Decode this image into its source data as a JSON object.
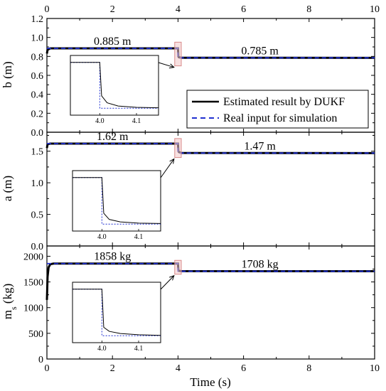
{
  "figure": {
    "top_axis_ticks": [
      "0",
      "2",
      "4",
      "6",
      "8",
      "10"
    ],
    "xlabel": "Time (s)",
    "x_ticks": [
      "0",
      "2",
      "4",
      "6",
      "8",
      "10"
    ]
  },
  "legend": {
    "placement": "inside panel 1, right",
    "entries": [
      {
        "label": "Estimated result by DUKF",
        "color": "#000000",
        "style": "solid"
      },
      {
        "label": "Real input for simulation",
        "color": "#1f2fd0",
        "style": "dashed"
      }
    ]
  },
  "chart_data": [
    {
      "type": "line",
      "title": "",
      "xlabel": "Time (s)",
      "ylabel": "b (m)",
      "xlim": [
        0,
        10
      ],
      "ylim": [
        0,
        1.2
      ],
      "y_ticks": [
        0.0,
        0.2,
        0.4,
        0.6,
        0.8,
        1.0,
        1.2
      ],
      "y_tick_labels": [
        "0.0",
        "0.2",
        "0.4",
        "0.6",
        "0.8",
        "1.0",
        "1.2"
      ],
      "series": [
        {
          "name": "Estimated result by DUKF",
          "color": "#000000",
          "x": [
            0,
            0.02,
            0.1,
            4.0,
            4.01,
            4.03,
            4.1,
            10
          ],
          "y": [
            0.83,
            0.87,
            0.885,
            0.885,
            0.8,
            0.79,
            0.786,
            0.785
          ]
        },
        {
          "name": "Real input for simulation",
          "color": "#1f2fd0",
          "x": [
            0,
            4.0,
            4.0,
            10
          ],
          "y": [
            0.885,
            0.885,
            0.785,
            0.785
          ]
        }
      ],
      "annotations": [
        {
          "text": "0.885 m",
          "x": 2.0,
          "y": 0.885
        },
        {
          "text": "0.785 m",
          "x": 6.5,
          "y": 0.785
        }
      ],
      "inset": {
        "zoom_x": [
          3.98,
          4.02
        ],
        "zoom_y": [
          0.7,
          0.95
        ],
        "xlim": [
          3.92,
          4.16
        ],
        "x_ticks": [
          4.0,
          4.1
        ],
        "x_tick_labels": [
          "4.0",
          "4.1"
        ],
        "series": [
          {
            "x": [
              3.92,
              4.0,
              4.005,
              4.02,
              4.05,
              4.1,
              4.16
            ],
            "y": [
              0.885,
              0.885,
              0.812,
              0.797,
              0.79,
              0.787,
              0.786
            ]
          },
          {
            "x": [
              3.92,
              4.0,
              4.0,
              4.16
            ],
            "y": [
              0.885,
              0.885,
              0.785,
              0.785
            ]
          }
        ]
      }
    },
    {
      "type": "line",
      "title": "",
      "xlabel": "Time (s)",
      "ylabel": "a (m)",
      "xlim": [
        0,
        10
      ],
      "ylim": [
        0,
        1.8
      ],
      "y_ticks": [
        0.0,
        0.5,
        1.0,
        1.5
      ],
      "y_tick_labels": [
        "0.0",
        "0.5",
        "1.0",
        "1.5"
      ],
      "series": [
        {
          "name": "Estimated result by DUKF",
          "color": "#000000",
          "x": [
            0,
            0.02,
            0.1,
            4.0,
            4.01,
            4.03,
            4.1,
            10
          ],
          "y": [
            1.55,
            1.61,
            1.62,
            1.62,
            1.5,
            1.485,
            1.472,
            1.47
          ]
        },
        {
          "name": "Real input for simulation",
          "color": "#1f2fd0",
          "x": [
            0,
            4.0,
            4.0,
            10
          ],
          "y": [
            1.62,
            1.62,
            1.47,
            1.47
          ]
        }
      ],
      "annotations": [
        {
          "text": "1.62 m",
          "x": 2.0,
          "y": 1.62
        },
        {
          "text": "1.47 m",
          "x": 6.5,
          "y": 1.47
        }
      ],
      "inset": {
        "zoom_x": [
          3.98,
          4.02
        ],
        "zoom_y": [
          1.4,
          1.7
        ],
        "xlim": [
          3.92,
          4.16
        ],
        "x_ticks": [
          4.0,
          4.1
        ],
        "x_tick_labels": [
          "4.0",
          "4.1"
        ],
        "series": [
          {
            "x": [
              3.92,
              4.0,
              4.005,
              4.02,
              4.05,
              4.1,
              4.16
            ],
            "y": [
              1.62,
              1.62,
              1.505,
              1.485,
              1.477,
              1.473,
              1.472
            ]
          },
          {
            "x": [
              3.92,
              4.0,
              4.0,
              4.16
            ],
            "y": [
              1.62,
              1.62,
              1.47,
              1.47
            ]
          }
        ]
      }
    },
    {
      "type": "line",
      "title": "",
      "xlabel": "Time (s)",
      "ylabel": "m_s (kg)",
      "xlim": [
        0,
        10
      ],
      "ylim": [
        0,
        2200
      ],
      "y_ticks": [
        0,
        500,
        1000,
        1500,
        2000
      ],
      "y_tick_labels": [
        "0",
        "500",
        "1000",
        "1500",
        "2000"
      ],
      "series": [
        {
          "name": "Estimated result by DUKF",
          "color": "#000000",
          "x": [
            0,
            0.02,
            0.05,
            0.1,
            0.2,
            4.0,
            4.01,
            4.03,
            4.1,
            10
          ],
          "y": [
            1150,
            1600,
            1780,
            1845,
            1858,
            1858,
            1730,
            1715,
            1710,
            1708
          ]
        },
        {
          "name": "Real input for simulation",
          "color": "#1f2fd0",
          "x": [
            0,
            4.0,
            4.0,
            10
          ],
          "y": [
            1858,
            1858,
            1708,
            1708
          ]
        }
      ],
      "annotations": [
        {
          "text": "1858 kg",
          "x": 2.0,
          "y": 1858
        },
        {
          "text": "1708 kg",
          "x": 6.5,
          "y": 1708
        }
      ],
      "inset": {
        "zoom_x": [
          3.98,
          4.02
        ],
        "zoom_y": [
          1650,
          1920
        ],
        "xlim": [
          3.92,
          4.16
        ],
        "x_ticks": [
          4.0,
          4.1
        ],
        "x_tick_labels": [
          "4.0",
          "4.1"
        ],
        "series": [
          {
            "x": [
              3.92,
              4.0,
              4.005,
              4.02,
              4.05,
              4.1,
              4.16
            ],
            "y": [
              1858,
              1858,
              1735,
              1722,
              1715,
              1711,
              1709
            ]
          },
          {
            "x": [
              3.92,
              4.0,
              4.0,
              4.16
            ],
            "y": [
              1858,
              1858,
              1708,
              1708
            ]
          }
        ]
      }
    }
  ]
}
